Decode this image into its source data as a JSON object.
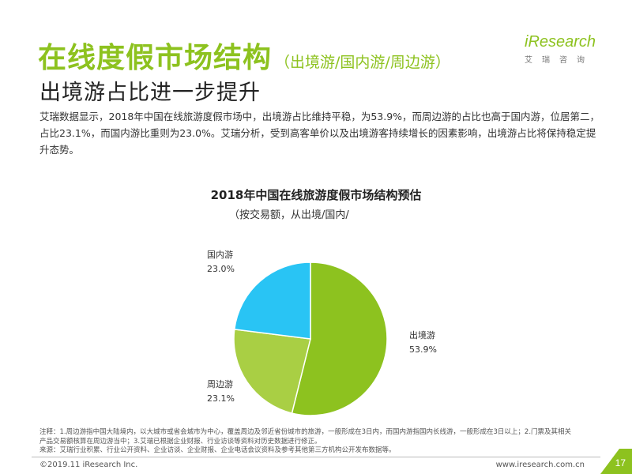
{
  "header": {
    "title_main": "在线度假市场结构",
    "title_paren": "（出境游/国内游/周边游）",
    "subtitle": "出境游占比进一步提升"
  },
  "logo": {
    "word": "iResearch",
    "cn": "艾瑞咨询"
  },
  "description": "艾瑞数据显示，2018年中国在线旅游度假市场中，出境游占比维持平稳，为53.9%，而周边游的占比也高于国内游，位居第二，占比23.1%，而国内游比重则为23.0%。艾瑞分析，受到高客单价以及出境游客持续增长的因素影响，出境游占比将保持稳定提升态势。",
  "chart_data": {
    "type": "pie",
    "title": "2018年中国在线旅游度假市场结构预估",
    "subtitle": "（按交易额，从出境/国内/",
    "slices": [
      {
        "label": "出境游",
        "value": 53.9,
        "value_label": "53.9%",
        "color": "#8dc21f"
      },
      {
        "label": "周边游",
        "value": 23.1,
        "value_label": "23.1%",
        "color": "#a9cf44"
      },
      {
        "label": "国内游",
        "value": 23.0,
        "value_label": "23.0%",
        "color": "#29c4f4"
      }
    ]
  },
  "footnote": {
    "line1": "注释：1.周边游指中国大陆境内，以大城市或省会城市为中心，覆盖周边及邻近省份城市的旅游，一般形成在3日内，而国内游指国内长线游，一般形成在3日以上；2.门票及其相关",
    "line2": "产品交易额核算在周边游当中；3.艾瑞已根据企业财报、行业访谈等资料对历史数据进行修正。",
    "line3": "来源：艾瑞行业积累、行业公开资料、企业访谈、企业财报、企业电话会议资料及参考其他第三方机构公开发布数据等。"
  },
  "footer": {
    "copyright": "©2019.11 iResearch Inc.",
    "website": "www.iresearch.com.cn",
    "page": "17"
  }
}
